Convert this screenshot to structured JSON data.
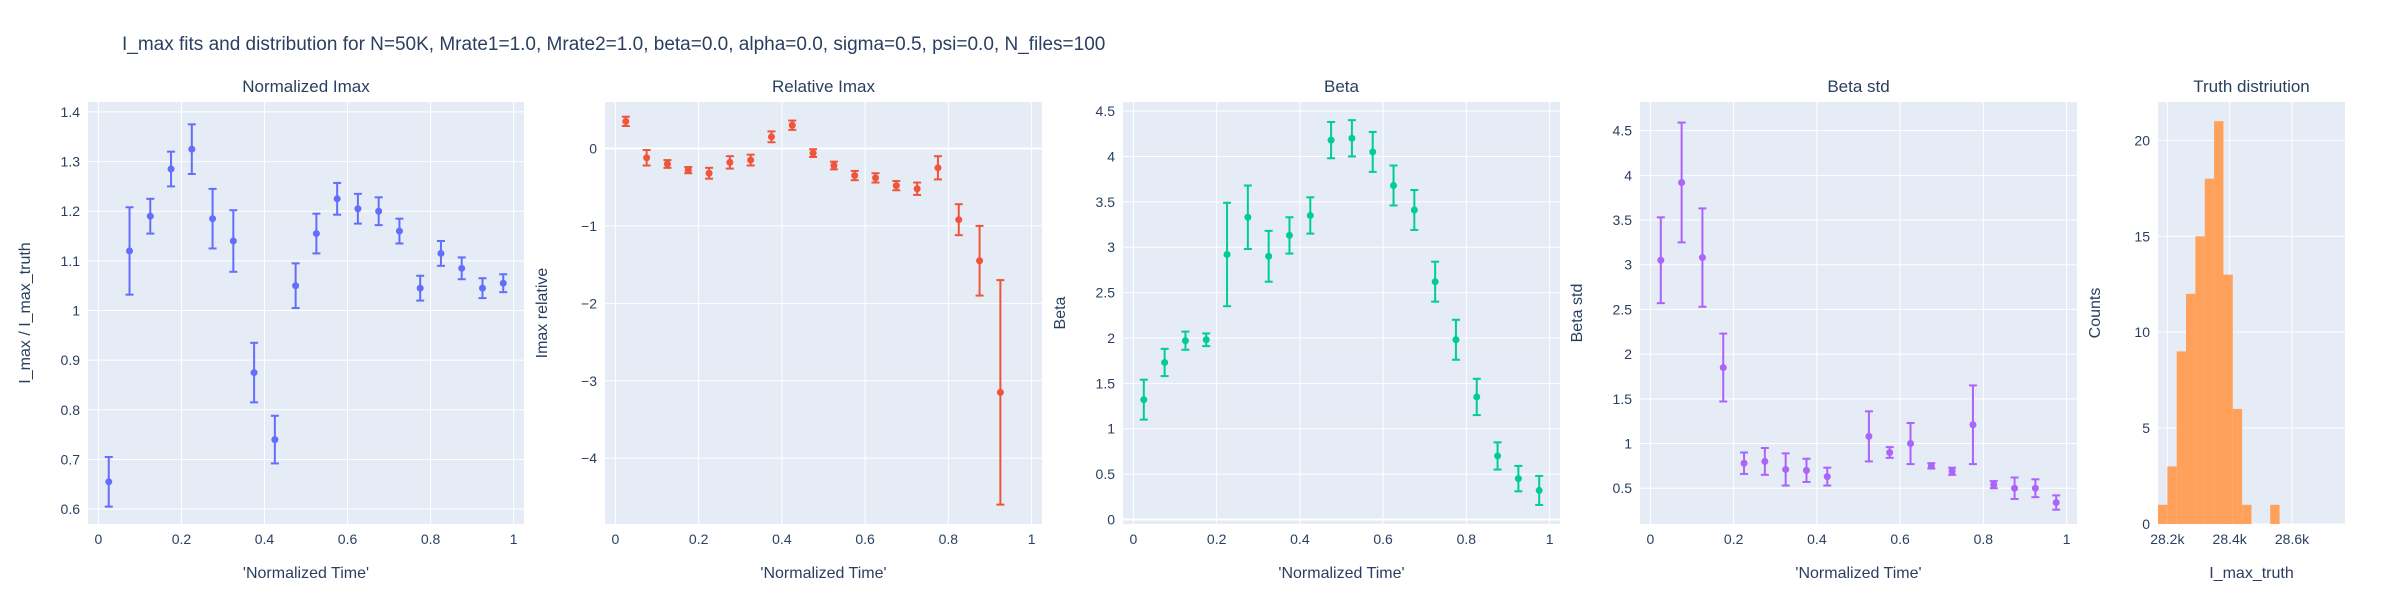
{
  "title": "I_max fits and distribution for N=50K, Mrate1=1.0, Mrate2=1.0, beta=0.0, alpha=0.0, sigma=0.5,  psi=0.0, N_files=100",
  "colors": {
    "plot_bg": "#e5ecf6",
    "grid": "#ffffff",
    "text": "#2a3f5f",
    "series1": "#636efa",
    "series2": "#ef553b",
    "series3": "#00cc96",
    "series4": "#ab63fa",
    "histogram": "#ffa15a"
  },
  "chart_data": [
    {
      "type": "scatter",
      "id": "p1",
      "title": "Normalized Imax",
      "xlabel": "'Normalized Time'",
      "ylabel": "I_max / I_max_truth",
      "xlim": [
        -0.025,
        1.025
      ],
      "ylim": [
        0.57,
        1.42
      ],
      "xticks": [
        0,
        0.2,
        0.4,
        0.6,
        0.8,
        1
      ],
      "xtick_labels": [
        "0",
        "0.2",
        "0.4",
        "0.6",
        "0.8",
        "1"
      ],
      "yticks": [
        0.6,
        0.7,
        0.8,
        0.9,
        1.0,
        1.1,
        1.2,
        1.3,
        1.4
      ],
      "ytick_labels": [
        "0.6",
        "0.7",
        "0.8",
        "0.9",
        "1",
        "1.1",
        "1.2",
        "1.3",
        "1.4"
      ],
      "color": "#636efa",
      "x": [
        0.025,
        0.075,
        0.125,
        0.175,
        0.225,
        0.275,
        0.325,
        0.375,
        0.425,
        0.475,
        0.525,
        0.575,
        0.625,
        0.675,
        0.725,
        0.775,
        0.825,
        0.875,
        0.925,
        0.975
      ],
      "y": [
        0.655,
        1.12,
        1.19,
        1.285,
        1.325,
        1.185,
        1.14,
        0.875,
        0.74,
        1.05,
        1.155,
        1.225,
        1.205,
        1.2,
        1.16,
        1.045,
        1.115,
        1.085,
        1.045,
        1.055
      ],
      "err": [
        0.05,
        0.088,
        0.035,
        0.035,
        0.05,
        0.06,
        0.062,
        0.06,
        0.048,
        0.045,
        0.04,
        0.032,
        0.03,
        0.028,
        0.025,
        0.025,
        0.025,
        0.022,
        0.02,
        0.018
      ]
    },
    {
      "type": "scatter",
      "id": "p2",
      "title": "Relative Imax",
      "xlabel": "'Normalized Time'",
      "ylabel": "Imax relative",
      "xlim": [
        -0.025,
        1.025
      ],
      "ylim": [
        -4.85,
        0.6
      ],
      "xticks": [
        0,
        0.2,
        0.4,
        0.6,
        0.8,
        1
      ],
      "xtick_labels": [
        "0",
        "0.2",
        "0.4",
        "0.6",
        "0.8",
        "1"
      ],
      "yticks": [
        -4,
        -3,
        -2,
        -1,
        0
      ],
      "ytick_labels": [
        "−4",
        "−3",
        "−2",
        "−1",
        "0"
      ],
      "color": "#ef553b",
      "x": [
        0.025,
        0.075,
        0.125,
        0.175,
        0.225,
        0.275,
        0.325,
        0.375,
        0.425,
        0.475,
        0.525,
        0.575,
        0.625,
        0.675,
        0.725,
        0.775,
        0.825,
        0.875,
        0.925
      ],
      "y": [
        0.35,
        -0.12,
        -0.2,
        -0.28,
        -0.32,
        -0.18,
        -0.15,
        0.15,
        0.3,
        -0.06,
        -0.22,
        -0.35,
        -0.38,
        -0.48,
        -0.52,
        -0.25,
        -0.92,
        -1.45,
        -3.15
      ],
      "err": [
        0.06,
        0.1,
        0.05,
        0.04,
        0.07,
        0.08,
        0.07,
        0.07,
        0.06,
        0.05,
        0.05,
        0.06,
        0.06,
        0.06,
        0.08,
        0.15,
        0.2,
        0.45,
        1.45
      ]
    },
    {
      "type": "scatter",
      "id": "p3",
      "title": "Beta",
      "xlabel": "'Normalized Time'",
      "ylabel": "Beta",
      "xlim": [
        -0.025,
        1.025
      ],
      "ylim": [
        -0.05,
        4.6
      ],
      "xticks": [
        0,
        0.2,
        0.4,
        0.6,
        0.8,
        1
      ],
      "xtick_labels": [
        "0",
        "0.2",
        "0.4",
        "0.6",
        "0.8",
        "1"
      ],
      "yticks": [
        0,
        0.5,
        1,
        1.5,
        2,
        2.5,
        3,
        3.5,
        4,
        4.5
      ],
      "ytick_labels": [
        "0",
        "0.5",
        "1",
        "1.5",
        "2",
        "2.5",
        "3",
        "3.5",
        "4",
        "4.5"
      ],
      "color": "#00cc96",
      "x": [
        0.025,
        0.075,
        0.125,
        0.175,
        0.225,
        0.275,
        0.325,
        0.375,
        0.425,
        0.475,
        0.525,
        0.575,
        0.625,
        0.675,
        0.725,
        0.775,
        0.825,
        0.875,
        0.925,
        0.975
      ],
      "y": [
        1.32,
        1.73,
        1.97,
        1.98,
        2.92,
        3.33,
        2.9,
        3.13,
        3.35,
        4.18,
        4.2,
        4.05,
        3.68,
        3.41,
        2.62,
        1.98,
        1.35,
        0.7,
        0.45,
        0.32
      ],
      "err": [
        0.22,
        0.15,
        0.1,
        0.07,
        0.57,
        0.35,
        0.28,
        0.2,
        0.2,
        0.2,
        0.2,
        0.22,
        0.22,
        0.22,
        0.22,
        0.22,
        0.2,
        0.15,
        0.14,
        0.16
      ]
    },
    {
      "type": "scatter",
      "id": "p4",
      "title": "Beta std",
      "xlabel": "'Normalized Time'",
      "ylabel": "Beta std",
      "xlim": [
        -0.025,
        1.025
      ],
      "ylim": [
        0.1,
        4.82
      ],
      "xticks": [
        0,
        0.2,
        0.4,
        0.6,
        0.8,
        1
      ],
      "xtick_labels": [
        "0",
        "0.2",
        "0.4",
        "0.6",
        "0.8",
        "1"
      ],
      "yticks": [
        0.5,
        1,
        1.5,
        2,
        2.5,
        3,
        3.5,
        4,
        4.5
      ],
      "ytick_labels": [
        "0.5",
        "1",
        "1.5",
        "2",
        "2.5",
        "3",
        "3.5",
        "4",
        "4.5"
      ],
      "color": "#ab63fa",
      "x": [
        0.025,
        0.075,
        0.125,
        0.175,
        0.225,
        0.275,
        0.325,
        0.375,
        0.425,
        0.525,
        0.575,
        0.625,
        0.675,
        0.725,
        0.775,
        0.825,
        0.875,
        0.925,
        0.975
      ],
      "y": [
        3.05,
        3.92,
        3.08,
        1.85,
        0.78,
        0.8,
        0.71,
        0.7,
        0.63,
        1.08,
        0.9,
        1.0,
        0.75,
        0.69,
        1.21,
        0.54,
        0.5,
        0.5,
        0.34
      ],
      "err": [
        0.48,
        0.67,
        0.55,
        0.38,
        0.12,
        0.15,
        0.18,
        0.13,
        0.1,
        0.28,
        0.06,
        0.23,
        0.03,
        0.04,
        0.44,
        0.04,
        0.12,
        0.1,
        0.08
      ]
    },
    {
      "type": "bar",
      "id": "p5",
      "title": "Truth distriution",
      "xlabel": "I_max_truth",
      "ylabel": "Counts",
      "xlim": [
        28170,
        28770
      ],
      "ylim": [
        0,
        22
      ],
      "xticks": [
        28200,
        28400,
        28600
      ],
      "xtick_labels": [
        "28.2k",
        "28.4k",
        "28.6k"
      ],
      "yticks": [
        0,
        5,
        10,
        15,
        20
      ],
      "ytick_labels": [
        "0",
        "5",
        "10",
        "15",
        "20"
      ],
      "color": "#ffa15a",
      "bin_start": 28170,
      "bin_width": 30,
      "values": [
        1,
        3,
        9,
        12,
        15,
        18,
        21,
        13,
        6,
        1,
        0,
        0,
        1
      ]
    }
  ]
}
